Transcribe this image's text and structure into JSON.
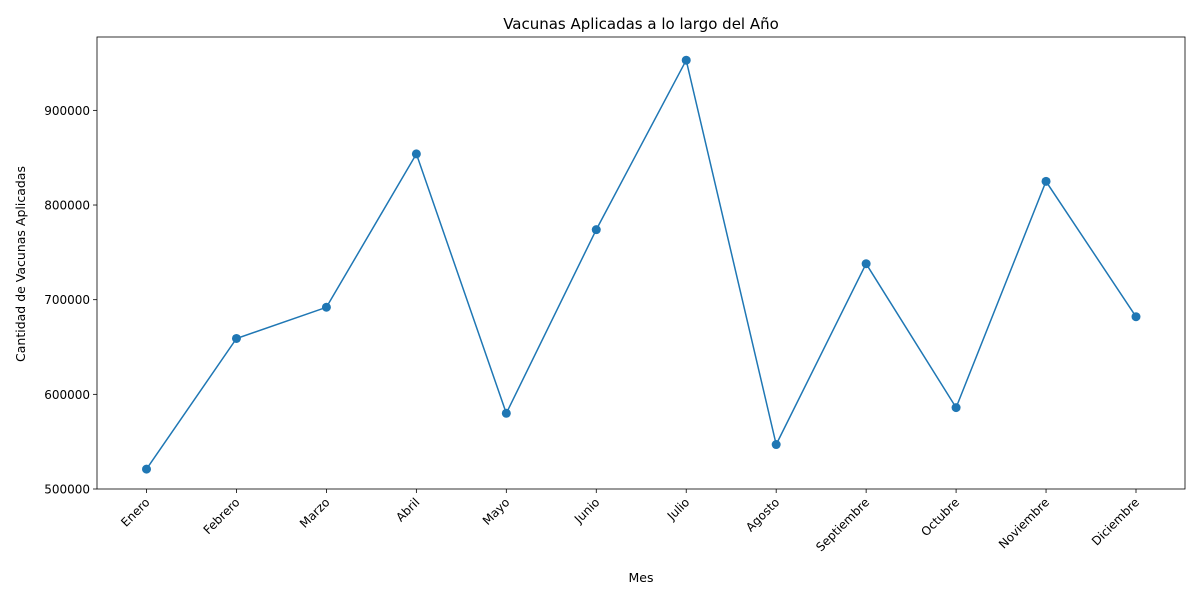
{
  "chart_data": {
    "type": "line",
    "title": "Vacunas Aplicadas a lo largo del Año",
    "xlabel": "Mes",
    "ylabel": "Cantidad de Vacunas Aplicadas",
    "categories": [
      "Enero",
      "Febrero",
      "Marzo",
      "Abril",
      "Mayo",
      "Junio",
      "Julio",
      "Agosto",
      "Septiembre",
      "Octubre",
      "Noviembre",
      "Diciembre"
    ],
    "series": [
      {
        "values": [
          521000,
          659000,
          692000,
          854000,
          580000,
          774000,
          953000,
          547000,
          738000,
          586000,
          825000,
          682000
        ],
        "color": "#1f77b4",
        "marker": "circle"
      }
    ],
    "ylim": [
      500000,
      977500
    ],
    "yticks": [
      500000,
      600000,
      700000,
      800000,
      900000
    ],
    "ytick_labels": [
      "500000",
      "600000",
      "700000",
      "800000",
      "900000"
    ],
    "grid": false,
    "legend": "none"
  }
}
